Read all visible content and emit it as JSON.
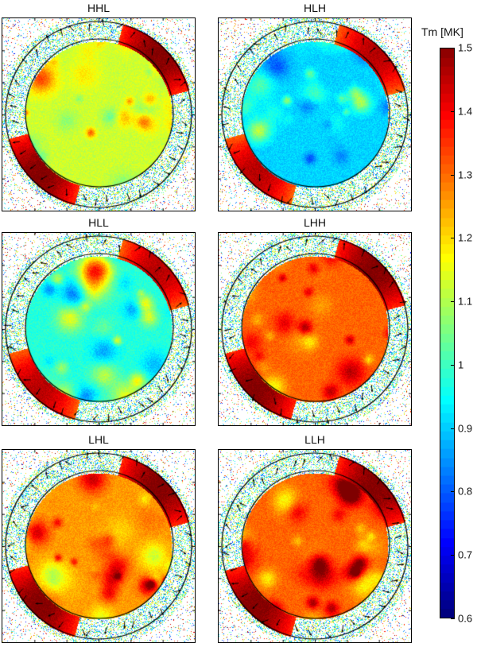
{
  "chart_data": {
    "type": "heatmap",
    "colormap": "jet",
    "colorbar": {
      "title": "Tm [MK]",
      "range": [
        0.6,
        1.5
      ],
      "ticks": [
        "1.5",
        "1.4",
        "1.3",
        "1.2",
        "1.1",
        "1",
        "0.9",
        "0.8",
        "0.7",
        "0.6"
      ]
    },
    "panels": [
      {
        "title": "HHL",
        "approx_disk_Tm": 1.12,
        "approx_limb_Tm": 1.5
      },
      {
        "title": "HLH",
        "approx_disk_Tm": 0.9,
        "approx_limb_Tm": 1.45
      },
      {
        "title": "HLL",
        "approx_disk_Tm": 0.97,
        "approx_limb_Tm": 1.45
      },
      {
        "title": "LHH",
        "approx_disk_Tm": 1.3,
        "approx_limb_Tm": 1.5
      },
      {
        "title": "LHL",
        "approx_disk_Tm": 1.25,
        "approx_limb_Tm": 1.5
      },
      {
        "title": "LLH",
        "approx_disk_Tm": 1.3,
        "approx_limb_Tm": 1.5
      }
    ]
  }
}
